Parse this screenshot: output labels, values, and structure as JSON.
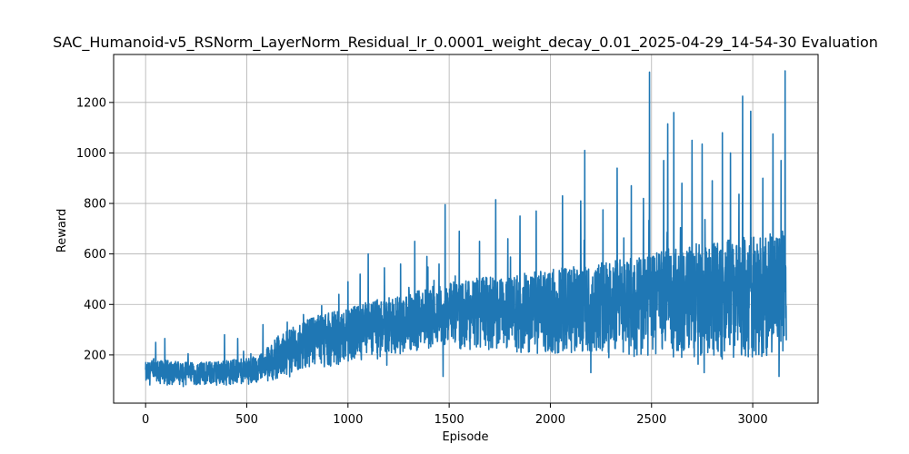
{
  "chart_data": {
    "type": "line",
    "title": "SAC_Humanoid-v5_RSNorm_LayerNorm_Residual_lr_0.0001_weight_decay_0.01_2025-04-29_14-54-30 Evaluation",
    "xlabel": "Episode",
    "ylabel": "Reward",
    "xlim": [
      -158,
      3323
    ],
    "ylim": [
      9,
      1390
    ],
    "xticks": [
      0,
      500,
      1000,
      1500,
      2000,
      2500,
      3000
    ],
    "yticks": [
      200,
      400,
      600,
      800,
      1000,
      1200
    ],
    "xtick_labels": [
      "0",
      "500",
      "1000",
      "1500",
      "2000",
      "2500",
      "3000"
    ],
    "ytick_labels": [
      "200",
      "400",
      "600",
      "800",
      "1000",
      "1200"
    ],
    "grid": true,
    "series": [
      {
        "color": "#1f77b4",
        "episodes": 3166,
        "trend_points": [
          {
            "x": 0,
            "low": 80,
            "high": 170
          },
          {
            "x": 100,
            "low": 80,
            "high": 180
          },
          {
            "x": 250,
            "low": 80,
            "high": 170
          },
          {
            "x": 400,
            "low": 80,
            "high": 180
          },
          {
            "x": 550,
            "low": 85,
            "high": 190
          },
          {
            "x": 650,
            "low": 100,
            "high": 270
          },
          {
            "x": 750,
            "low": 120,
            "high": 320
          },
          {
            "x": 850,
            "low": 140,
            "high": 360
          },
          {
            "x": 1000,
            "low": 170,
            "high": 390
          },
          {
            "x": 1150,
            "low": 190,
            "high": 420
          },
          {
            "x": 1300,
            "low": 210,
            "high": 450
          },
          {
            "x": 1450,
            "low": 230,
            "high": 480
          },
          {
            "x": 1600,
            "low": 220,
            "high": 500
          },
          {
            "x": 1800,
            "low": 210,
            "high": 520
          },
          {
            "x": 2000,
            "low": 200,
            "high": 540
          },
          {
            "x": 2200,
            "low": 200,
            "high": 560
          },
          {
            "x": 2400,
            "low": 190,
            "high": 590
          },
          {
            "x": 2600,
            "low": 190,
            "high": 620
          },
          {
            "x": 2800,
            "low": 180,
            "high": 650
          },
          {
            "x": 3000,
            "low": 180,
            "high": 670
          },
          {
            "x": 3166,
            "low": 200,
            "high": 700
          }
        ],
        "peaks": [
          {
            "x": 40,
            "y": 185
          },
          {
            "x": 50,
            "y": 250
          },
          {
            "x": 95,
            "y": 265
          },
          {
            "x": 210,
            "y": 205
          },
          {
            "x": 390,
            "y": 280
          },
          {
            "x": 455,
            "y": 265
          },
          {
            "x": 520,
            "y": 205
          },
          {
            "x": 580,
            "y": 320
          },
          {
            "x": 655,
            "y": 275
          },
          {
            "x": 700,
            "y": 330
          },
          {
            "x": 780,
            "y": 360
          },
          {
            "x": 870,
            "y": 395
          },
          {
            "x": 955,
            "y": 440
          },
          {
            "x": 1000,
            "y": 490
          },
          {
            "x": 1060,
            "y": 520
          },
          {
            "x": 1100,
            "y": 600
          },
          {
            "x": 1180,
            "y": 545
          },
          {
            "x": 1260,
            "y": 560
          },
          {
            "x": 1330,
            "y": 650
          },
          {
            "x": 1390,
            "y": 590
          },
          {
            "x": 1450,
            "y": 560
          },
          {
            "x": 1480,
            "y": 795
          },
          {
            "x": 1550,
            "y": 690
          },
          {
            "x": 1650,
            "y": 650
          },
          {
            "x": 1730,
            "y": 815
          },
          {
            "x": 1790,
            "y": 660
          },
          {
            "x": 1850,
            "y": 750
          },
          {
            "x": 1930,
            "y": 770
          },
          {
            "x": 2060,
            "y": 830
          },
          {
            "x": 2150,
            "y": 810
          },
          {
            "x": 2170,
            "y": 1010
          },
          {
            "x": 2260,
            "y": 775
          },
          {
            "x": 2330,
            "y": 940
          },
          {
            "x": 2400,
            "y": 870
          },
          {
            "x": 2460,
            "y": 820
          },
          {
            "x": 2490,
            "y": 1320
          },
          {
            "x": 2560,
            "y": 970
          },
          {
            "x": 2580,
            "y": 1115
          },
          {
            "x": 2610,
            "y": 1160
          },
          {
            "x": 2650,
            "y": 880
          },
          {
            "x": 2700,
            "y": 1050
          },
          {
            "x": 2750,
            "y": 1035
          },
          {
            "x": 2800,
            "y": 890
          },
          {
            "x": 2850,
            "y": 1080
          },
          {
            "x": 2890,
            "y": 1000
          },
          {
            "x": 2950,
            "y": 1225
          },
          {
            "x": 2990,
            "y": 1165
          },
          {
            "x": 3050,
            "y": 900
          },
          {
            "x": 3100,
            "y": 1075
          },
          {
            "x": 3140,
            "y": 970
          },
          {
            "x": 3160,
            "y": 1325
          }
        ],
        "troughs": [
          {
            "x": 1470,
            "y": 115
          },
          {
            "x": 2200,
            "y": 130
          },
          {
            "x": 2760,
            "y": 130
          },
          {
            "x": 2950,
            "y": 120
          },
          {
            "x": 3130,
            "y": 115
          }
        ],
        "final_point": {
          "x": 3166,
          "y": 260
        }
      }
    ]
  }
}
